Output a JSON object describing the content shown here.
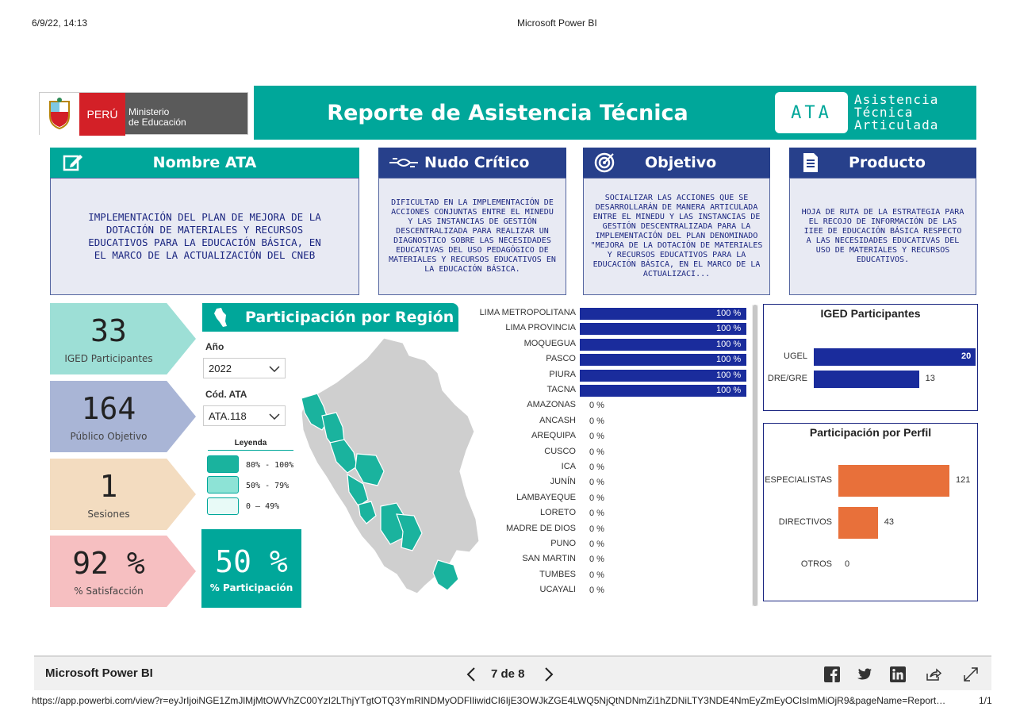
{
  "print_header": {
    "date": "6/9/22, 14:13",
    "title": "Microsoft Power BI",
    "url": "https://app.powerbi.com/view?r=eyJrIjoiNGE1ZmJlMjMtOWVhZC00YzI2LThjYTgtOTQ3YmRlNDMyODFlIiwidCI6IjE3OWJkZGE4LWQ5NjQtNDNmZi1hZDNiLTY3NDE4NmEyZmEyOCIsImMiOjR9&pageName=Report…",
    "page_count": "1/1"
  },
  "logo": {
    "country": "PERÚ",
    "ministry_line1": "Ministerio",
    "ministry_line2": "de Educación"
  },
  "banner": {
    "title": "Reporte de Asistencia Técnica",
    "badge": "ATA",
    "subtitle_line1": "Asistencia",
    "subtitle_line2": "Técnica",
    "subtitle_line3": "Articulada"
  },
  "cards": [
    {
      "header": "Nombre ATA",
      "icon": "edit-icon",
      "body": "IMPLEMENTACIÓN DEL PLAN DE MEJORA DE LA DOTACIÓN DE MATERIALES Y RECURSOS EDUCATIVOS PARA LA EDUCACIÓN BÁSICA, EN EL MARCO DE LA ACTUALIZACIÓN DEL CNEB"
    },
    {
      "header": "Nudo Crítico",
      "icon": "handshake-icon",
      "body": "DIFICULTAD EN LA IMPLEMENTACIÓN DE ACCIONES CONJUNTAS ENTRE EL MINEDU Y LAS INSTANCIAS DE GESTIÓN DESCENTRALIZADA PARA REALIZAR UN DIAGNOSTICO SOBRE LAS NECESIDADES EDUCATIVAS DEL USO PEDAGÓGICO DE MATERIALES Y RECURSOS EDUCATIVOS EN LA EDUCACIÓN BÁSICA."
    },
    {
      "header": "Objetivo",
      "icon": "target-icon",
      "body": "SOCIALIZAR LAS ACCIONES QUE SE DESARROLLARÁN DE MANERA ARTICULADA ENTRE EL MINEDU Y LAS INSTANCIAS DE GESTIÓN DESCENTRALIZADA PARA LA IMPLEMENTACIÓN DEL PLAN DENOMINADO \"MEJORA DE LA DOTACIÓN DE MATERIALES Y RECURSOS EDUCATIVOS PARA LA EDUCACIÓN BÁSICA, EN EL MARCO DE LA ACTUALIZACI..."
    },
    {
      "header": "Producto",
      "icon": "document-icon",
      "body": "HOJA DE RUTA DE LA ESTRATEGIA PARA EL RECOJO DE INFORMACIÓN DE LAS IIEE DE EDUCACIÓN BÁSICA RESPECTO A LAS NECESIDADES EDUCATIVAS DEL USO DE MATERIALES Y RECURSOS EDUCATIVOS."
    }
  ],
  "kpis": [
    {
      "value": "33",
      "label": "IGED Participantes",
      "color": "#9ddfd6"
    },
    {
      "value": "164",
      "label": "Público Objetivo",
      "color": "#a9b5d6"
    },
    {
      "value": "1",
      "label": "Sesiones",
      "color": "#f3dcc0"
    },
    {
      "value": "92 %",
      "label": "% Satisfacción",
      "color": "#f6bfc1"
    }
  ],
  "region_section": {
    "title": "Participación por Región",
    "year_label": "Año",
    "year_value": "2022",
    "code_label": "Cód. ATA",
    "code_value": "ATA.118",
    "legend_title": "Leyenda",
    "legend": [
      {
        "label": "80% - 100%",
        "color": "#1ab39e"
      },
      {
        "label": "50% - 79%",
        "color": "#8de3d6"
      },
      {
        "label": "0 – 49%",
        "color": "#e8faf7"
      }
    ],
    "participation_value": "50 %",
    "participation_label": "% Participación"
  },
  "regions": [
    {
      "name": "LIMA METROPOLITANA",
      "value": 100,
      "label": "100 %"
    },
    {
      "name": "LIMA PROVINCIA",
      "value": 100,
      "label": "100 %"
    },
    {
      "name": "MOQUEGUA",
      "value": 100,
      "label": "100 %"
    },
    {
      "name": "PASCO",
      "value": 100,
      "label": "100 %"
    },
    {
      "name": "PIURA",
      "value": 100,
      "label": "100 %"
    },
    {
      "name": "TACNA",
      "value": 100,
      "label": "100 %"
    },
    {
      "name": "AMAZONAS",
      "value": 0,
      "label": "0 %"
    },
    {
      "name": "ANCASH",
      "value": 0,
      "label": "0 %"
    },
    {
      "name": "AREQUIPA",
      "value": 0,
      "label": "0 %"
    },
    {
      "name": "CUSCO",
      "value": 0,
      "label": "0 %"
    },
    {
      "name": "ICA",
      "value": 0,
      "label": "0 %"
    },
    {
      "name": "JUNÍN",
      "value": 0,
      "label": "0 %"
    },
    {
      "name": "LAMBAYEQUE",
      "value": 0,
      "label": "0 %"
    },
    {
      "name": "LORETO",
      "value": 0,
      "label": "0 %"
    },
    {
      "name": "MADRE DE DIOS",
      "value": 0,
      "label": "0 %"
    },
    {
      "name": "PUNO",
      "value": 0,
      "label": "0 %"
    },
    {
      "name": "SAN MARTIN",
      "value": 0,
      "label": "0 %"
    },
    {
      "name": "TUMBES",
      "value": 0,
      "label": "0 %"
    },
    {
      "name": "UCAYALI",
      "value": 0,
      "label": "0 %"
    }
  ],
  "iged_panel": {
    "title": "IGED Participantes",
    "color": "#1a2c9c",
    "max": 20,
    "bars": [
      {
        "name": "UGEL",
        "value": 20
      },
      {
        "name": "DRE/GRE",
        "value": 13
      }
    ]
  },
  "perfil_panel": {
    "title": "Participación por Perfil",
    "color": "#e8703a",
    "max": 121,
    "bars": [
      {
        "name": "ESPECIALISTAS",
        "value": 121
      },
      {
        "name": "DIRECTIVOS",
        "value": 43
      },
      {
        "name": "OTROS",
        "value": 0
      }
    ]
  },
  "footer": {
    "app_name": "Microsoft Power BI",
    "page_indicator": "7 de 8"
  },
  "colors": {
    "teal": "#00a79a",
    "navy": "#27408b",
    "bar_blue": "#1a2c9c",
    "orange": "#e8703a"
  }
}
